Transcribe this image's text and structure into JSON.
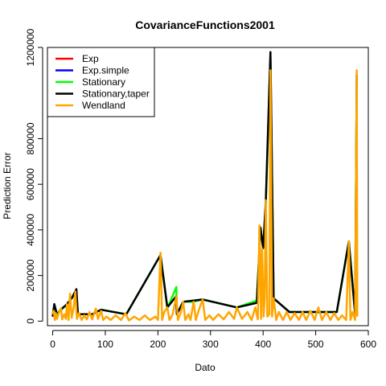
{
  "chart_data": {
    "type": "line",
    "title": "CovarianceFunctions2001",
    "xlabel": "Dato",
    "ylabel": "Prediction Error",
    "xlim": [
      -10,
      600
    ],
    "ylim": [
      -20000,
      1200000
    ],
    "x_ticks": [
      0,
      100,
      200,
      300,
      400,
      500,
      600
    ],
    "y_ticks": [
      0,
      200000,
      400000,
      600000,
      800000,
      1200000
    ],
    "legend_position": "top-left",
    "grid": false,
    "series": [
      {
        "name": "Exp",
        "color": "#ff0000",
        "points": []
      },
      {
        "name": "Exp.simple",
        "color": "#0000ff",
        "points": []
      },
      {
        "name": "Stationary",
        "color": "#00ff00",
        "points": [
          [
            0,
            20000
          ],
          [
            3,
            60000
          ],
          [
            8,
            30000
          ],
          [
            16,
            55000
          ],
          [
            27,
            70000
          ],
          [
            36,
            100000
          ],
          [
            45,
            125000
          ],
          [
            48,
            30000
          ],
          [
            75,
            30000
          ],
          [
            92,
            50000
          ],
          [
            140,
            30000
          ],
          [
            205,
            290000
          ],
          [
            218,
            55000
          ],
          [
            235,
            150000
          ],
          [
            236,
            30000
          ],
          [
            248,
            85000
          ],
          [
            268,
            85000
          ],
          [
            285,
            95000
          ],
          [
            350,
            60000
          ],
          [
            388,
            90000
          ],
          [
            395,
            410000
          ],
          [
            400,
            320000
          ],
          [
            405,
            520000
          ],
          [
            414,
            1160000
          ],
          [
            420,
            100000
          ],
          [
            450,
            40000
          ],
          [
            500,
            40000
          ],
          [
            540,
            40000
          ],
          [
            563,
            350000
          ],
          [
            575,
            30000
          ],
          [
            578,
            1080000
          ]
        ]
      },
      {
        "name": "Stationary,taper",
        "color": "#000000",
        "points": [
          [
            0,
            20000
          ],
          [
            3,
            75000
          ],
          [
            8,
            30000
          ],
          [
            16,
            50000
          ],
          [
            27,
            75000
          ],
          [
            36,
            100000
          ],
          [
            45,
            140000
          ],
          [
            48,
            30000
          ],
          [
            75,
            30000
          ],
          [
            92,
            50000
          ],
          [
            140,
            30000
          ],
          [
            205,
            290000
          ],
          [
            218,
            60000
          ],
          [
            235,
            110000
          ],
          [
            236,
            30000
          ],
          [
            248,
            85000
          ],
          [
            268,
            90000
          ],
          [
            285,
            95000
          ],
          [
            350,
            60000
          ],
          [
            388,
            80000
          ],
          [
            395,
            410000
          ],
          [
            400,
            320000
          ],
          [
            405,
            520000
          ],
          [
            414,
            1180000
          ],
          [
            420,
            100000
          ],
          [
            450,
            40000
          ],
          [
            500,
            40000
          ],
          [
            540,
            40000
          ],
          [
            563,
            350000
          ],
          [
            575,
            30000
          ],
          [
            578,
            1080000
          ]
        ]
      },
      {
        "name": "Wendland",
        "color": "#ffa500",
        "points": [
          [
            0,
            30000
          ],
          [
            2,
            45000
          ],
          [
            4,
            5000
          ],
          [
            6,
            35000
          ],
          [
            8,
            10000
          ],
          [
            12,
            40000
          ],
          [
            16,
            55000
          ],
          [
            18,
            8000
          ],
          [
            22,
            30000
          ],
          [
            25,
            10000
          ],
          [
            27,
            75000
          ],
          [
            30,
            5000
          ],
          [
            33,
            120000
          ],
          [
            36,
            15000
          ],
          [
            40,
            60000
          ],
          [
            43,
            130000
          ],
          [
            46,
            10000
          ],
          [
            50,
            35000
          ],
          [
            55,
            5000
          ],
          [
            60,
            25000
          ],
          [
            65,
            8000
          ],
          [
            70,
            40000
          ],
          [
            75,
            8000
          ],
          [
            82,
            55000
          ],
          [
            86,
            10000
          ],
          [
            92,
            45000
          ],
          [
            96,
            5000
          ],
          [
            102,
            20000
          ],
          [
            110,
            5000
          ],
          [
            120,
            25000
          ],
          [
            130,
            5000
          ],
          [
            138,
            35000
          ],
          [
            145,
            3000
          ],
          [
            155,
            20000
          ],
          [
            165,
            5000
          ],
          [
            175,
            25000
          ],
          [
            185,
            5000
          ],
          [
            195,
            20000
          ],
          [
            200,
            5000
          ],
          [
            205,
            300000
          ],
          [
            208,
            5000
          ],
          [
            212,
            40000
          ],
          [
            218,
            60000
          ],
          [
            222,
            5000
          ],
          [
            228,
            30000
          ],
          [
            235,
            110000
          ],
          [
            238,
            5000
          ],
          [
            244,
            40000
          ],
          [
            248,
            85000
          ],
          [
            252,
            5000
          ],
          [
            258,
            30000
          ],
          [
            262,
            5000
          ],
          [
            268,
            85000
          ],
          [
            272,
            5000
          ],
          [
            278,
            50000
          ],
          [
            285,
            95000
          ],
          [
            290,
            5000
          ],
          [
            298,
            25000
          ],
          [
            305,
            5000
          ],
          [
            315,
            30000
          ],
          [
            325,
            8000
          ],
          [
            335,
            40000
          ],
          [
            345,
            10000
          ],
          [
            350,
            60000
          ],
          [
            360,
            10000
          ],
          [
            370,
            40000
          ],
          [
            378,
            5000
          ],
          [
            385,
            60000
          ],
          [
            390,
            8000
          ],
          [
            393,
            420000
          ],
          [
            396,
            10000
          ],
          [
            398,
            320000
          ],
          [
            401,
            20000
          ],
          [
            403,
            100000
          ],
          [
            405,
            530000
          ],
          [
            408,
            20000
          ],
          [
            412,
            30000
          ],
          [
            414,
            1100000
          ],
          [
            417,
            20000
          ],
          [
            420,
            100000
          ],
          [
            425,
            5000
          ],
          [
            430,
            40000
          ],
          [
            438,
            5000
          ],
          [
            445,
            40000
          ],
          [
            452,
            5000
          ],
          [
            460,
            35000
          ],
          [
            468,
            5000
          ],
          [
            475,
            40000
          ],
          [
            482,
            5000
          ],
          [
            490,
            45000
          ],
          [
            498,
            5000
          ],
          [
            505,
            60000
          ],
          [
            512,
            5000
          ],
          [
            520,
            40000
          ],
          [
            528,
            5000
          ],
          [
            535,
            35000
          ],
          [
            543,
            5000
          ],
          [
            550,
            25000
          ],
          [
            558,
            5000
          ],
          [
            563,
            350000
          ],
          [
            566,
            5000
          ],
          [
            570,
            40000
          ],
          [
            575,
            5000
          ],
          [
            578,
            1100000
          ],
          [
            579,
            20000
          ]
        ]
      }
    ]
  }
}
